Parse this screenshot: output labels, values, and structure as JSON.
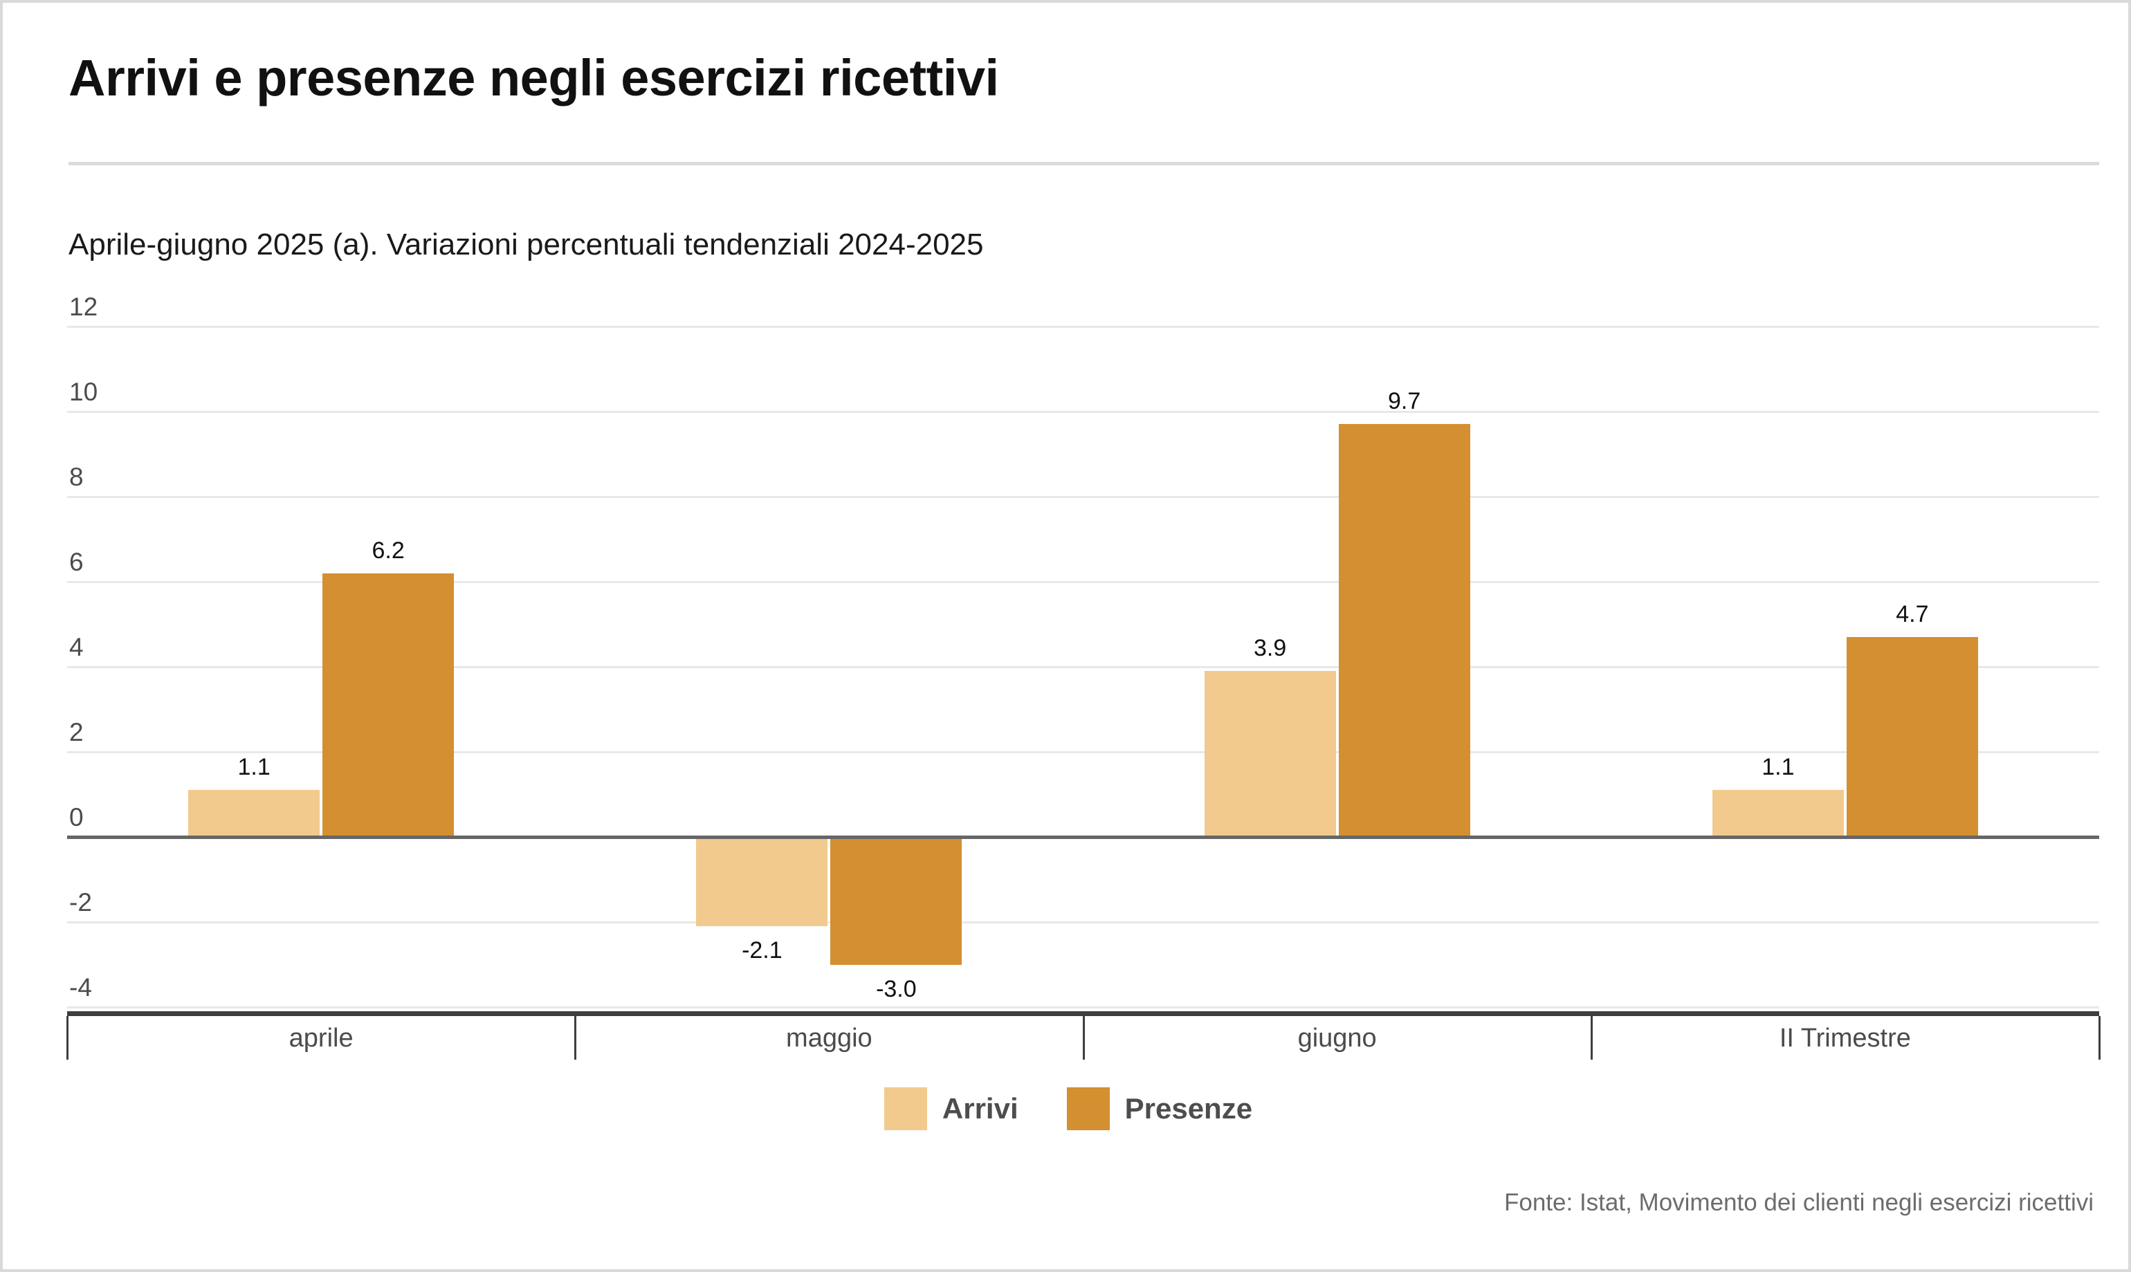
{
  "header": {
    "title": "Arrivi e presenze negli esercizi ricettivi",
    "subtitle": "Aprile-giugno 2025 (a). Variazioni percentuali tendenziali 2024-2025"
  },
  "chart_data": {
    "type": "bar",
    "title": "Arrivi e presenze negli esercizi ricettivi",
    "subtitle": "Aprile-giugno 2025 (a). Variazioni percentuali tendenziali 2024-2025",
    "categories": [
      "aprile",
      "maggio",
      "giugno",
      "II Trimestre"
    ],
    "series": [
      {
        "name": "Arrivi",
        "color": "#F2CA8D",
        "values": [
          1.1,
          -2.1,
          3.9,
          1.1
        ]
      },
      {
        "name": "Presenze",
        "color": "#D38F30",
        "values": [
          6.2,
          -3.0,
          9.7,
          4.7
        ]
      }
    ],
    "ylim": [
      -4,
      12
    ],
    "ytick_step": 2,
    "value_decimals": 1,
    "grid": true,
    "legend_position": "bottom",
    "xlabel": "",
    "ylabel": ""
  },
  "colors": {
    "gridline": "#e8e8e8",
    "zero_line": "#666666",
    "axis_line": "#3e3e3e",
    "tick_label": "#4b4b4b",
    "value_label": "#111111"
  },
  "footer": {
    "source": "Fonte: Istat, Movimento dei clienti negli esercizi ricettivi"
  }
}
